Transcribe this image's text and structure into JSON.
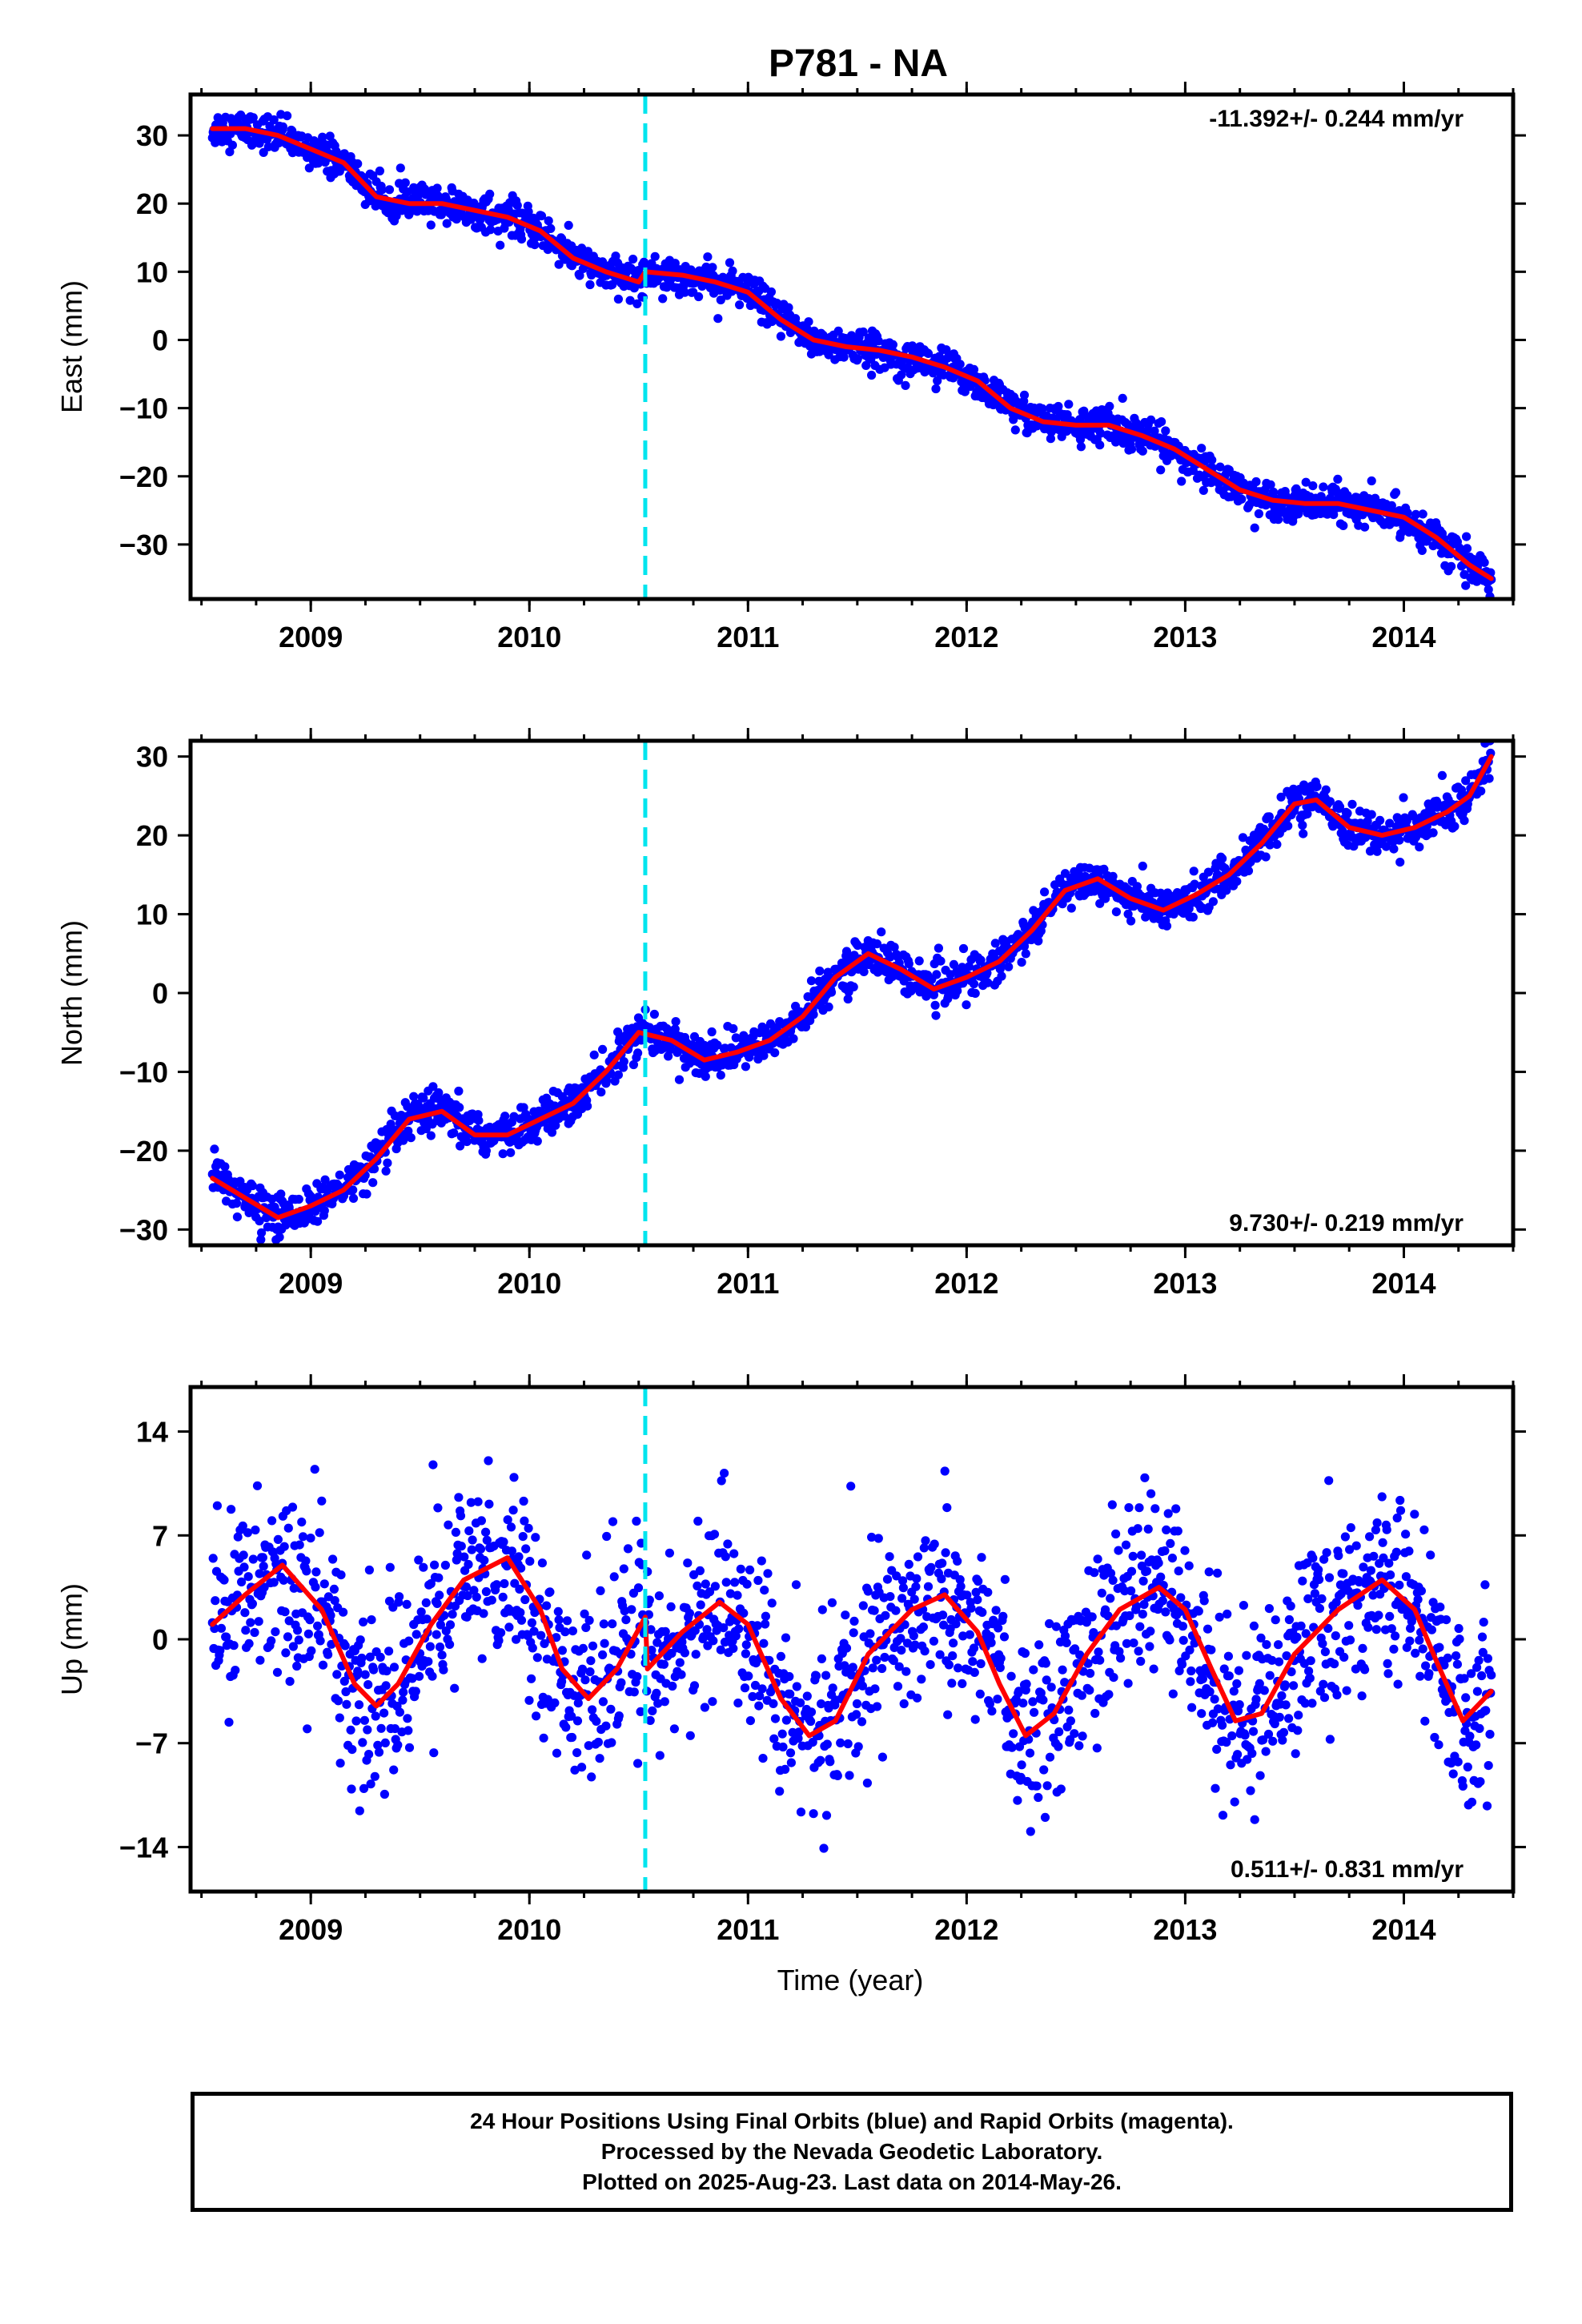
{
  "title": "P781 - NA",
  "panels": [
    {
      "id": "east",
      "ylabel": "East (mm)",
      "rate_label": "-11.392+/- 0.244 mm/yr",
      "rate_position": "top-right"
    },
    {
      "id": "north",
      "ylabel": "North (mm)",
      "rate_label": "9.730+/- 0.219 mm/yr",
      "rate_position": "bottom-right"
    },
    {
      "id": "up",
      "ylabel": "Up (mm)",
      "rate_label": "0.511+/- 0.831 mm/yr",
      "rate_position": "bottom-right"
    }
  ],
  "xlabel": "Time (year)",
  "caption": [
    "24 Hour Positions Using Final Orbits (blue) and Rapid Orbits (magenta).",
    "Processed by the Nevada Geodetic Laboratory.",
    "Plotted on 2025-Aug-23. Last data on 2014-May-26."
  ],
  "colors": {
    "points": "#0000ff",
    "model": "#ff0000",
    "event_line": "#00e5ee",
    "frame": "#000000"
  },
  "chart_data": [
    {
      "type": "scatter",
      "panel": "east",
      "ylabel": "East (mm)",
      "xlim": [
        2008.45,
        2014.5
      ],
      "ylim": [
        -38,
        36
      ],
      "x_ticks": [
        2009,
        2010,
        2011,
        2012,
        2013,
        2014
      ],
      "y_ticks": [
        -30,
        -20,
        -10,
        0,
        10,
        20,
        30
      ],
      "event_line_x": 2010.53,
      "data_range": [
        2008.55,
        2014.4
      ],
      "noise_mm": 1.3,
      "model": {
        "x": [
          2008.55,
          2008.7,
          2008.85,
          2009.0,
          2009.15,
          2009.3,
          2009.45,
          2009.6,
          2009.75,
          2009.9,
          2010.05,
          2010.2,
          2010.35,
          2010.5,
          2010.53,
          2010.7,
          2010.85,
          2011.0,
          2011.15,
          2011.3,
          2011.45,
          2011.6,
          2011.75,
          2011.9,
          2012.05,
          2012.2,
          2012.35,
          2012.5,
          2012.65,
          2012.8,
          2012.95,
          2013.1,
          2013.25,
          2013.4,
          2013.55,
          2013.7,
          2013.85,
          2014.0,
          2014.15,
          2014.3,
          2014.4
        ],
        "y": [
          31,
          31,
          30,
          28,
          26,
          21,
          20,
          20,
          19,
          18,
          16,
          12,
          10,
          8.5,
          10,
          9.5,
          8.5,
          7,
          3,
          0,
          -1,
          -1.5,
          -2.5,
          -4,
          -6,
          -10,
          -12,
          -12.5,
          -12.5,
          -14,
          -16,
          -19,
          -22,
          -23.5,
          -24,
          -24,
          -25,
          -26,
          -29,
          -33,
          -35
        ]
      }
    },
    {
      "type": "scatter",
      "panel": "north",
      "ylabel": "North (mm)",
      "xlim": [
        2008.45,
        2014.5
      ],
      "ylim": [
        -32,
        32
      ],
      "x_ticks": [
        2009,
        2010,
        2011,
        2012,
        2013,
        2014
      ],
      "y_ticks": [
        -30,
        -20,
        -10,
        0,
        10,
        20,
        30
      ],
      "event_line_x": 2010.53,
      "data_range": [
        2008.55,
        2014.4
      ],
      "noise_mm": 1.3,
      "model": {
        "x": [
          2008.55,
          2008.7,
          2008.85,
          2009.0,
          2009.15,
          2009.3,
          2009.45,
          2009.6,
          2009.75,
          2009.9,
          2010.05,
          2010.2,
          2010.35,
          2010.5,
          2010.65,
          2010.8,
          2010.95,
          2011.1,
          2011.25,
          2011.4,
          2011.55,
          2011.7,
          2011.85,
          2012.0,
          2012.15,
          2012.3,
          2012.45,
          2012.6,
          2012.75,
          2012.9,
          2013.05,
          2013.2,
          2013.35,
          2013.5,
          2013.6,
          2013.75,
          2013.9,
          2014.05,
          2014.2,
          2014.3,
          2014.4
        ],
        "y": [
          -23.5,
          -26,
          -28.5,
          -27,
          -25,
          -21,
          -16,
          -15,
          -18,
          -18,
          -16,
          -14,
          -10,
          -5,
          -6,
          -8.5,
          -7.5,
          -6,
          -3,
          2,
          5,
          3,
          0.5,
          2,
          4,
          8,
          13,
          14.5,
          12,
          10.5,
          12.5,
          15,
          19,
          24,
          24.5,
          21,
          20,
          21,
          23,
          25,
          30
        ]
      }
    },
    {
      "type": "scatter",
      "panel": "up",
      "ylabel": "Up (mm)",
      "xlim": [
        2008.45,
        2014.5
      ],
      "ylim": [
        -17,
        17
      ],
      "x_ticks": [
        2009,
        2010,
        2011,
        2012,
        2013,
        2014
      ],
      "y_ticks": [
        -14,
        -7,
        0,
        7,
        14
      ],
      "event_line_x": 2010.53,
      "data_range": [
        2008.55,
        2014.4
      ],
      "noise_mm": 3.2,
      "model": {
        "x": [
          2008.55,
          2008.7,
          2008.87,
          2009.05,
          2009.2,
          2009.3,
          2009.4,
          2009.55,
          2009.7,
          2009.9,
          2010.05,
          2010.15,
          2010.27,
          2010.4,
          2010.53,
          2010.54,
          2010.7,
          2010.87,
          2011.0,
          2011.15,
          2011.28,
          2011.4,
          2011.55,
          2011.75,
          2011.9,
          2012.05,
          2012.15,
          2012.27,
          2012.4,
          2012.55,
          2012.7,
          2012.88,
          2013.0,
          2013.12,
          2013.23,
          2013.35,
          2013.5,
          2013.7,
          2013.9,
          2014.05,
          2014.15,
          2014.27,
          2014.4
        ],
        "y": [
          1,
          3,
          5,
          2,
          -3,
          -4.5,
          -3,
          1,
          4,
          5.5,
          2,
          -2,
          -4,
          -2,
          1.5,
          -2,
          0.5,
          2.5,
          1,
          -4,
          -6.5,
          -5.5,
          -1,
          2,
          3,
          0.5,
          -3,
          -6.5,
          -5,
          -1,
          2,
          3.5,
          2,
          -2,
          -5.5,
          -5,
          -1,
          2,
          4,
          2,
          -1.5,
          -5.5,
          -3.5
        ]
      }
    }
  ]
}
